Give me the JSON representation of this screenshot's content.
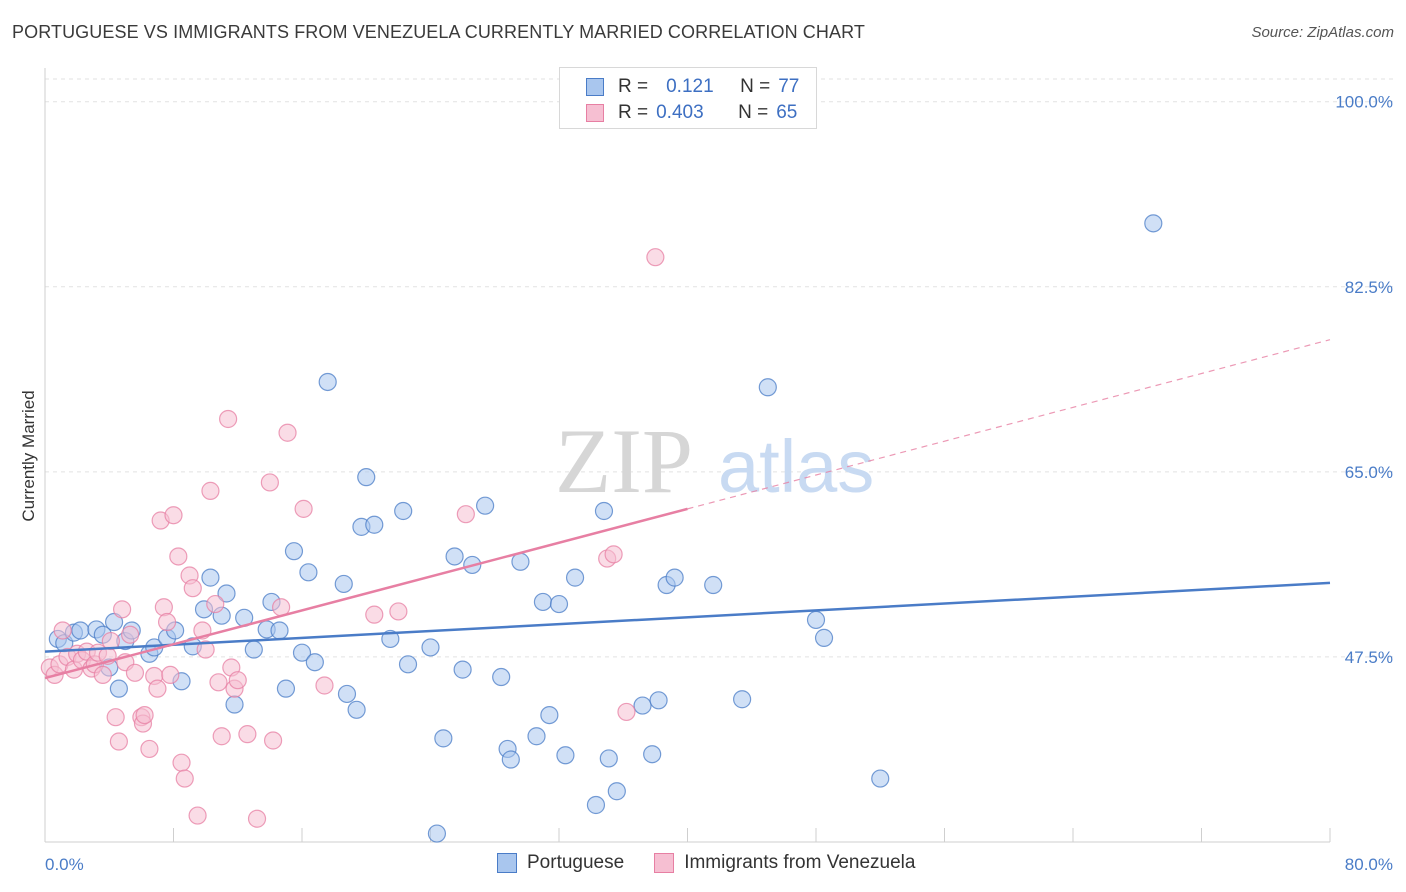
{
  "header": {
    "title": "PORTUGUESE VS IMMIGRANTS FROM VENEZUELA CURRENTLY MARRIED CORRELATION CHART",
    "source": "Source: ZipAtlas.com"
  },
  "watermark": {
    "zip": "ZIP",
    "atlas": "atlas"
  },
  "legend": {
    "rows": [
      {
        "r_label": "R =",
        "r_value": "0.121",
        "n_label": "N =",
        "n_value": "77",
        "color": "#4a7cc7"
      },
      {
        "r_label": "R =",
        "r_value": "0.403",
        "n_label": "N =",
        "n_value": "65",
        "color": "#e77fa3"
      }
    ]
  },
  "chart_data": {
    "type": "scatter",
    "title": "PORTUGUESE VS IMMIGRANTS FROM VENEZUELA CURRENTLY MARRIED CORRELATION CHART",
    "xlabel": "",
    "ylabel": "Currently Married",
    "xlim": [
      0,
      80
    ],
    "ylim": [
      30,
      103
    ],
    "x_tick_labels": [
      "0.0%",
      "80.0%"
    ],
    "y_ticks": [
      47.5,
      65.0,
      82.5,
      100.0
    ],
    "y_tick_labels": [
      "47.5%",
      "65.0%",
      "82.5%",
      "100.0%"
    ],
    "grid": true,
    "legend_position": "top-center",
    "series": [
      {
        "name": "Portuguese",
        "color": "#4a7cc7",
        "fill": "#a9c6ee",
        "trend": {
          "x0": 0,
          "y0": 48.0,
          "x1": 80,
          "y1": 54.5,
          "dashed_from": null
        },
        "points": [
          [
            0.8,
            49.2
          ],
          [
            1.2,
            48.8
          ],
          [
            1.8,
            49.8
          ],
          [
            2.2,
            50.0
          ],
          [
            3.2,
            50.1
          ],
          [
            3.6,
            49.6
          ],
          [
            4.3,
            50.8
          ],
          [
            4.0,
            46.5
          ],
          [
            4.6,
            44.5
          ],
          [
            5.0,
            49.0
          ],
          [
            5.4,
            50.0
          ],
          [
            6.5,
            47.8
          ],
          [
            6.8,
            48.4
          ],
          [
            7.6,
            49.3
          ],
          [
            8.1,
            50.0
          ],
          [
            8.5,
            45.2
          ],
          [
            9.2,
            48.5
          ],
          [
            9.9,
            52.0
          ],
          [
            10.3,
            55.0
          ],
          [
            11.0,
            51.4
          ],
          [
            11.3,
            53.5
          ],
          [
            11.8,
            43.0
          ],
          [
            12.4,
            51.2
          ],
          [
            13.0,
            48.2
          ],
          [
            13.8,
            50.1
          ],
          [
            14.1,
            52.7
          ],
          [
            14.6,
            50.0
          ],
          [
            15.0,
            44.5
          ],
          [
            15.5,
            57.5
          ],
          [
            16.0,
            47.9
          ],
          [
            16.4,
            55.5
          ],
          [
            16.8,
            47.0
          ],
          [
            17.6,
            73.5
          ],
          [
            18.6,
            54.4
          ],
          [
            18.8,
            44.0
          ],
          [
            19.4,
            42.5
          ],
          [
            19.7,
            59.8
          ],
          [
            20.0,
            64.5
          ],
          [
            20.5,
            60.0
          ],
          [
            21.5,
            49.2
          ],
          [
            22.3,
            61.3
          ],
          [
            22.6,
            46.8
          ],
          [
            24.0,
            48.4
          ],
          [
            24.4,
            30.8
          ],
          [
            24.8,
            39.8
          ],
          [
            25.5,
            57.0
          ],
          [
            26.0,
            46.3
          ],
          [
            26.6,
            56.2
          ],
          [
            27.4,
            61.8
          ],
          [
            28.4,
            45.6
          ],
          [
            28.8,
            38.8
          ],
          [
            29.0,
            37.8
          ],
          [
            29.6,
            56.5
          ],
          [
            30.6,
            40.0
          ],
          [
            31.0,
            52.7
          ],
          [
            31.4,
            42.0
          ],
          [
            32.0,
            52.5
          ],
          [
            32.4,
            38.2
          ],
          [
            33.0,
            55.0
          ],
          [
            34.3,
            33.5
          ],
          [
            34.8,
            61.3
          ],
          [
            35.1,
            37.9
          ],
          [
            35.6,
            34.8
          ],
          [
            37.2,
            42.9
          ],
          [
            37.8,
            38.3
          ],
          [
            38.2,
            43.4
          ],
          [
            38.7,
            54.3
          ],
          [
            39.2,
            55.0
          ],
          [
            41.6,
            54.3
          ],
          [
            43.4,
            43.5
          ],
          [
            45.0,
            73.0
          ],
          [
            48.0,
            51.0
          ],
          [
            48.5,
            49.3
          ],
          [
            52.0,
            36.0
          ],
          [
            69.0,
            88.5
          ]
        ]
      },
      {
        "name": "Immigrants from Venezuela",
        "color": "#e77fa3",
        "fill": "#f6bfd2",
        "trend": {
          "x0": 0,
          "y0": 45.5,
          "x1": 80,
          "y1": 77.5,
          "dashed_from": 40
        },
        "points": [
          [
            0.3,
            46.5
          ],
          [
            0.6,
            45.8
          ],
          [
            0.9,
            46.8
          ],
          [
            1.1,
            50.0
          ],
          [
            1.4,
            47.5
          ],
          [
            1.8,
            46.3
          ],
          [
            2.0,
            47.8
          ],
          [
            2.3,
            47.2
          ],
          [
            2.6,
            48.0
          ],
          [
            2.9,
            46.4
          ],
          [
            3.1,
            46.8
          ],
          [
            3.3,
            47.9
          ],
          [
            3.6,
            45.8
          ],
          [
            3.9,
            47.6
          ],
          [
            4.1,
            49.0
          ],
          [
            4.4,
            41.8
          ],
          [
            4.6,
            39.5
          ],
          [
            4.8,
            52.0
          ],
          [
            5.0,
            47.0
          ],
          [
            5.3,
            49.6
          ],
          [
            5.6,
            46.0
          ],
          [
            6.0,
            41.8
          ],
          [
            6.1,
            41.2
          ],
          [
            6.2,
            42.0
          ],
          [
            6.5,
            38.8
          ],
          [
            6.8,
            45.7
          ],
          [
            7.0,
            44.5
          ],
          [
            7.2,
            60.4
          ],
          [
            7.4,
            52.2
          ],
          [
            7.6,
            50.8
          ],
          [
            7.8,
            45.8
          ],
          [
            8.0,
            60.9
          ],
          [
            8.3,
            57.0
          ],
          [
            8.5,
            37.5
          ],
          [
            8.7,
            36.0
          ],
          [
            9.0,
            55.2
          ],
          [
            9.2,
            54.0
          ],
          [
            9.5,
            32.5
          ],
          [
            9.8,
            50.0
          ],
          [
            10.0,
            48.2
          ],
          [
            10.3,
            63.2
          ],
          [
            10.6,
            52.5
          ],
          [
            10.8,
            45.1
          ],
          [
            11.0,
            40.0
          ],
          [
            11.4,
            70.0
          ],
          [
            11.6,
            46.5
          ],
          [
            11.8,
            44.5
          ],
          [
            12.0,
            45.3
          ],
          [
            12.6,
            40.2
          ],
          [
            13.2,
            32.2
          ],
          [
            14.0,
            64.0
          ],
          [
            14.2,
            39.6
          ],
          [
            14.7,
            52.2
          ],
          [
            15.1,
            68.7
          ],
          [
            16.1,
            61.5
          ],
          [
            17.4,
            44.8
          ],
          [
            20.5,
            51.5
          ],
          [
            22.0,
            51.8
          ],
          [
            26.2,
            61.0
          ],
          [
            35.0,
            56.8
          ],
          [
            35.4,
            57.2
          ],
          [
            36.2,
            42.3
          ],
          [
            38.0,
            85.3
          ]
        ]
      }
    ]
  },
  "bottom_legend": [
    {
      "label": "Portuguese",
      "color": "#4a7cc7",
      "fill": "#a9c6ee"
    },
    {
      "label": "Immigrants from Venezuela",
      "color": "#e77fa3",
      "fill": "#f6bfd2"
    }
  ]
}
